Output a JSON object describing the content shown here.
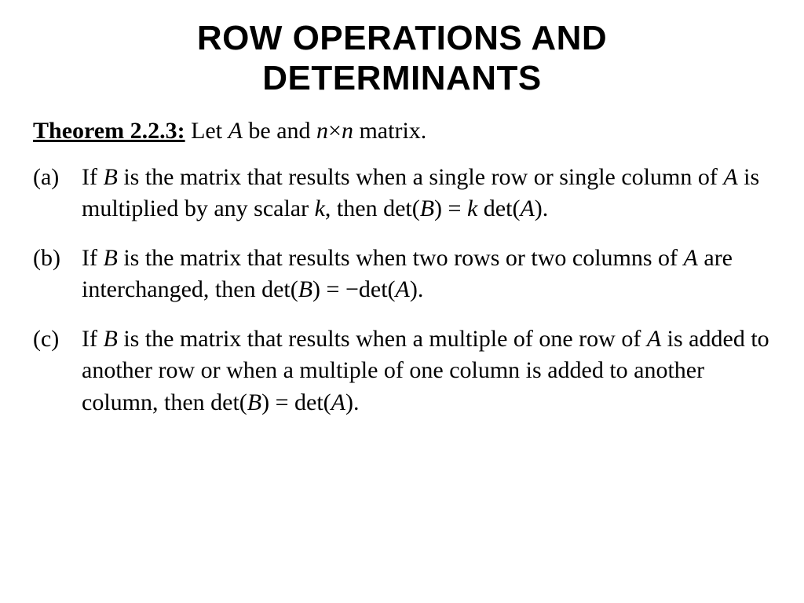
{
  "colors": {
    "background": "#ffffff",
    "text": "#000000"
  },
  "typography": {
    "title_font": "Helvetica/Arial",
    "title_size_pt": 33,
    "title_weight": "bold",
    "body_font": "Times New Roman",
    "body_size_pt": 22
  },
  "title": {
    "line1": "ROW OPERATIONS AND",
    "line2": "DETERMINANTS"
  },
  "theorem": {
    "label": "Theorem 2.2.3:",
    "intro_before_A": "  Let ",
    "intro_A": "A",
    "intro_mid": " be and ",
    "intro_n": "n",
    "intro_times": "×",
    "intro_n2": "n",
    "intro_after": " matrix."
  },
  "items": [
    {
      "marker": "(a)",
      "p1": "If ",
      "B1": "B",
      "p2": " is the matrix that results when a single row or single column of ",
      "A1": "A",
      "p3": " is multiplied by any scalar ",
      "k1": "k",
      "p4": ", then det(",
      "B2": "B",
      "p5": ") = ",
      "k2": "k",
      "p6": " det(",
      "A2": "A",
      "p7": ")."
    },
    {
      "marker": "(b)",
      "p1": "If ",
      "B1": "B",
      "p2": " is the matrix that results when two rows or two columns of ",
      "A1": "A",
      "p3": " are interchanged, then det(",
      "B2": "B",
      "p4": ") = −det(",
      "A2": "A",
      "p5": ")."
    },
    {
      "marker": "(c)",
      "lead": " ",
      "p1": "If ",
      "B1": "B",
      "p2": " is the matrix that results when a multiple of one row of ",
      "A1": "A",
      "p3": " is added to another row or when a multiple of one column is added to another column, then det(",
      "B2": "B",
      "p4": ") = det(",
      "A2": "A",
      "p5": ")."
    }
  ]
}
